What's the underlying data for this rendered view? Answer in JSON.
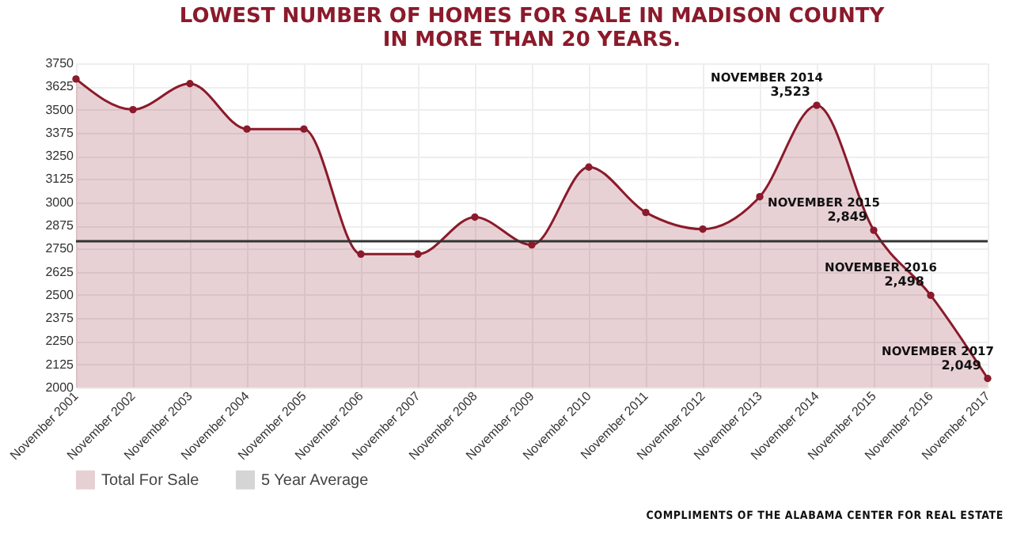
{
  "chart_data": {
    "type": "area",
    "title": "LOWEST NUMBER OF HOMES FOR SALE IN MADISON COUNTY\nIN MORE THAN 20 YEARS.",
    "categories": [
      "November 2001",
      "November 2002",
      "November 2003",
      "November 2004",
      "November 2005",
      "November 2006",
      "November 2007",
      "November 2008",
      "November 2009",
      "November 2010",
      "November 2011",
      "November 2012",
      "November 2013",
      "November 2014",
      "November 2015",
      "November 2016",
      "November 2017"
    ],
    "series": [
      {
        "name": "Total For Sale",
        "color": "#8b1a2b",
        "values": [
          3665,
          3500,
          3640,
          3395,
          3395,
          2720,
          2720,
          2920,
          2770,
          3190,
          2945,
          2855,
          3030,
          3523,
          2849,
          2498,
          2049
        ],
        "value_labels": [
          null,
          null,
          null,
          null,
          null,
          null,
          null,
          null,
          null,
          null,
          null,
          null,
          null,
          "3,523",
          "2,849",
          "2,498",
          "2,049"
        ]
      }
    ],
    "ref_lines": [
      {
        "axis": "y",
        "value": 2790,
        "label": "5 Year Average",
        "color": "#333333"
      }
    ],
    "annotations": [
      {
        "text": "NOVEMBER 2014",
        "x": "November 2014",
        "y": 3523
      },
      {
        "text": "NOVEMBER 2015",
        "x": "November 2015",
        "y": 2849
      },
      {
        "text": "NOVEMBER 2016",
        "x": "November 2016",
        "y": 2498
      },
      {
        "text": "NOVEMBER 2017",
        "x": "November 2017",
        "y": 2049
      },
      "COMPLIMENTS OF THE ALABAMA CENTER FOR REAL ESTATE"
    ],
    "ylim": [
      2000,
      3750
    ],
    "yticks": [
      2000,
      2125,
      2250,
      2375,
      2500,
      2625,
      2750,
      2875,
      3000,
      3125,
      3250,
      3375,
      3500,
      3625,
      3750
    ],
    "grid": true,
    "legend": "bottom",
    "marker": "circle",
    "line_style": "solid"
  }
}
